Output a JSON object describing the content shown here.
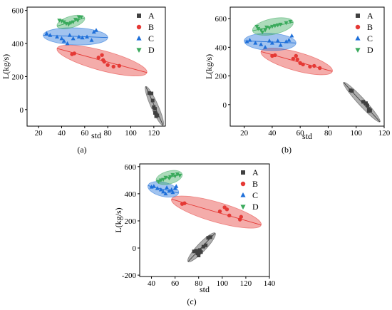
{
  "chart_data": [
    {
      "type": "scatter",
      "panel_label": "(a)",
      "xlabel": "std",
      "ylabel": "L(kg/s)",
      "xlim": [
        10,
        130
      ],
      "ylim": [
        -100,
        620
      ],
      "xticks": [
        20,
        40,
        60,
        80,
        100,
        120
      ],
      "yticks": [
        0,
        200,
        400,
        600
      ],
      "legend_position": "top-right",
      "series": [
        {
          "name": "A",
          "marker": "square",
          "color": "#404040",
          "points": [
            [
              116,
              100
            ],
            [
              118,
              98
            ],
            [
              119,
              55
            ],
            [
              120,
              15
            ],
            [
              121,
              5
            ],
            [
              121,
              -20
            ],
            [
              122,
              -28
            ],
            [
              123,
              -35
            ],
            [
              122,
              -40
            ]
          ],
          "ellipse": {
            "center": [
              120.5,
              20
            ],
            "line": [
              [
                128,
                -95
              ],
              [
                113,
                140
              ]
            ],
            "halfwidth": 5
          }
        },
        {
          "name": "B",
          "marker": "circle",
          "color": "#e53935",
          "points": [
            [
              49,
              335
            ],
            [
              51,
              340
            ],
            [
              72,
              315
            ],
            [
              75,
              330
            ],
            [
              76,
              300
            ],
            [
              77,
              290
            ],
            [
              80,
              270
            ],
            [
              85,
              260
            ],
            [
              90,
              265
            ]
          ],
          "ellipse": {
            "center": [
              75,
              297
            ],
            "line": [
              [
                36,
                370
              ],
              [
                114,
                224
              ]
            ],
            "halfwidth": 14
          }
        },
        {
          "name": "C",
          "marker": "triangle-up",
          "color": "#1e6fd9",
          "points": [
            [
              27,
              460
            ],
            [
              30,
              450
            ],
            [
              36,
              440
            ],
            [
              40,
              430
            ],
            [
              42,
              415
            ],
            [
              45,
              400
            ],
            [
              47,
              450
            ],
            [
              50,
              430
            ],
            [
              55,
              440
            ],
            [
              58,
              435
            ],
            [
              62,
              440
            ],
            [
              66,
              420
            ],
            [
              68,
              470
            ],
            [
              70,
              480
            ]
          ],
          "ellipse": {
            "center": [
              52,
              443
            ],
            "line": [
              [
                24,
                450
              ],
              [
                80,
                436
              ]
            ],
            "halfwidth": 12
          }
        },
        {
          "name": "D",
          "marker": "triangle-down",
          "color": "#3aaa5c",
          "points": [
            [
              38,
              540
            ],
            [
              40,
              535
            ],
            [
              42,
              530
            ],
            [
              44,
              520
            ],
            [
              46,
              515
            ],
            [
              48,
              525
            ],
            [
              50,
              530
            ],
            [
              52,
              545
            ],
            [
              54,
              540
            ],
            [
              55,
              560
            ],
            [
              57,
              560
            ]
          ],
          "ellipse": {
            "center": [
              48,
              530
            ],
            "line": [
              [
                36,
                505
              ],
              [
                60,
                555
              ]
            ],
            "halfwidth": 8
          }
        }
      ]
    },
    {
      "type": "scatter",
      "panel_label": "(b)",
      "xlabel": "std",
      "ylabel": "L(kg/s)",
      "xlim": [
        10,
        120
      ],
      "ylim": [
        -150,
        680
      ],
      "xticks": [
        20,
        40,
        60,
        80,
        100,
        120
      ],
      "yticks": [
        0,
        200,
        400,
        600
      ],
      "legend_position": "top-right",
      "series": [
        {
          "name": "A",
          "marker": "square",
          "color": "#404040",
          "points": [
            [
              96,
              100
            ],
            [
              97,
              95
            ],
            [
              105,
              20
            ],
            [
              107,
              10
            ],
            [
              108,
              -5
            ],
            [
              109,
              -30
            ],
            [
              110,
              -40
            ],
            [
              109,
              -45
            ]
          ],
          "ellipse": {
            "center": [
              103,
              20
            ],
            "line": [
              [
                117,
                -120
              ],
              [
                91,
                155
              ]
            ],
            "halfwidth": 5
          }
        },
        {
          "name": "B",
          "marker": "circle",
          "color": "#e53935",
          "points": [
            [
              40,
              340
            ],
            [
              42,
              345
            ],
            [
              55,
              320
            ],
            [
              57,
              340
            ],
            [
              58,
              315
            ],
            [
              60,
              290
            ],
            [
              62,
              280
            ],
            [
              67,
              265
            ],
            [
              70,
              270
            ],
            [
              74,
              255
            ]
          ],
          "ellipse": {
            "center": [
              57,
              305
            ],
            "line": [
              [
                32,
                370
              ],
              [
                83,
                232
              ]
            ],
            "halfwidth": 13
          }
        },
        {
          "name": "C",
          "marker": "triangle-up",
          "color": "#1e6fd9",
          "points": [
            [
              22,
              440
            ],
            [
              24,
              450
            ],
            [
              28,
              430
            ],
            [
              32,
              420
            ],
            [
              35,
              400
            ],
            [
              38,
              445
            ],
            [
              40,
              430
            ],
            [
              44,
              445
            ],
            [
              46,
              415
            ],
            [
              50,
              440
            ],
            [
              52,
              450
            ],
            [
              54,
              480
            ]
          ],
          "ellipse": {
            "center": [
              38,
              440
            ],
            "line": [
              [
                20,
                445
              ],
              [
                57,
                430
              ]
            ],
            "halfwidth": 12
          }
        },
        {
          "name": "D",
          "marker": "triangle-down",
          "color": "#3aaa5c",
          "points": [
            [
              29,
              545
            ],
            [
              30,
              530
            ],
            [
              32,
              520
            ],
            [
              33,
              505
            ],
            [
              35,
              520
            ],
            [
              36,
              540
            ],
            [
              38,
              535
            ],
            [
              40,
              545
            ],
            [
              42,
              550
            ],
            [
              44,
              555
            ],
            [
              46,
              560
            ],
            [
              50,
              570
            ],
            [
              53,
              580
            ]
          ],
          "ellipse": {
            "center": [
              40,
              540
            ],
            "line": [
              [
                26,
                515
              ],
              [
                55,
                575
              ]
            ],
            "halfwidth": 11
          }
        }
      ]
    },
    {
      "type": "scatter",
      "panel_label": "(c)",
      "xlabel": "std",
      "ylabel": "L(kg/s)",
      "xlim": [
        30,
        140
      ],
      "ylim": [
        -210,
        620
      ],
      "xticks": [
        40,
        60,
        80,
        100,
        120,
        140
      ],
      "yticks": [
        -200,
        0,
        200,
        400,
        600
      ],
      "legend_position": "top-right",
      "series": [
        {
          "name": "A",
          "marker": "square",
          "color": "#404040",
          "points": [
            [
              76,
              -25
            ],
            [
              78,
              -20
            ],
            [
              79,
              -40
            ],
            [
              80,
              -55
            ],
            [
              81,
              -15
            ],
            [
              82,
              -30
            ],
            [
              84,
              10
            ],
            [
              86,
              20
            ],
            [
              88,
              75
            ],
            [
              90,
              80
            ]
          ],
          "ellipse": {
            "center": [
              83,
              20
            ],
            "line": [
              [
                71,
                -100
              ],
              [
                94,
                110
              ]
            ],
            "halfwidth": 6
          }
        },
        {
          "name": "B",
          "marker": "circle",
          "color": "#e53935",
          "points": [
            [
              66,
              325
            ],
            [
              68,
              330
            ],
            [
              98,
              270
            ],
            [
              102,
              300
            ],
            [
              104,
              285
            ],
            [
              106,
              240
            ],
            [
              115,
              210
            ],
            [
              116,
              230
            ]
          ],
          "ellipse": {
            "center": [
              93,
              265
            ],
            "line": [
              [
                57,
                360
              ],
              [
                133,
                170
              ]
            ],
            "halfwidth": 14
          }
        },
        {
          "name": "C",
          "marker": "triangle-up",
          "color": "#1e6fd9",
          "points": [
            [
              40,
              450
            ],
            [
              42,
              455
            ],
            [
              45,
              440
            ],
            [
              48,
              430
            ],
            [
              50,
              415
            ],
            [
              52,
              400
            ],
            [
              53,
              445
            ],
            [
              55,
              420
            ],
            [
              57,
              430
            ],
            [
              58,
              410
            ],
            [
              60,
              440
            ],
            [
              61,
              455
            ]
          ],
          "ellipse": {
            "center": [
              50,
              430
            ],
            "line": [
              [
                37,
                460
              ],
              [
                63,
                405
              ]
            ],
            "halfwidth": 10
          }
        },
        {
          "name": "D",
          "marker": "triangle-down",
          "color": "#3aaa5c",
          "points": [
            [
              46,
              490
            ],
            [
              48,
              500
            ],
            [
              50,
              505
            ],
            [
              52,
              520
            ],
            [
              55,
              515
            ],
            [
              56,
              525
            ],
            [
              58,
              540
            ],
            [
              60,
              530
            ],
            [
              62,
              545
            ],
            [
              64,
              535
            ]
          ],
          "ellipse": {
            "center": [
              55,
              520
            ],
            "line": [
              [
                44,
                495
              ],
              [
                66,
                545
              ]
            ],
            "halfwidth": 9
          }
        }
      ]
    }
  ]
}
